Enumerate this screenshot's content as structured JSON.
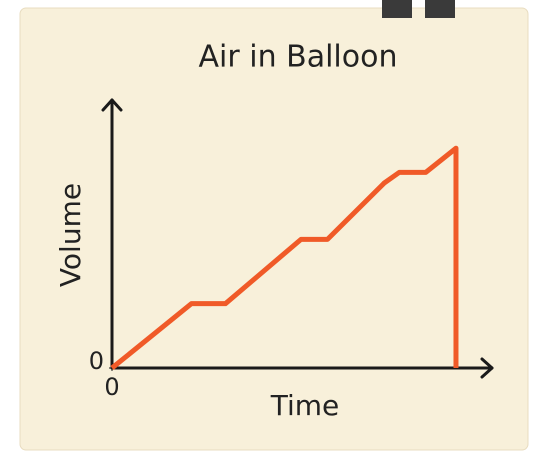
{
  "chart_data": {
    "type": "line",
    "title": "Air in Balloon",
    "xlabel": "Time",
    "ylabel": "Volume",
    "x": [
      0,
      2.1,
      3.0,
      5.0,
      5.7,
      7.2,
      7.6,
      8.3,
      9.1,
      9.1
    ],
    "series": [
      {
        "name": "Air",
        "color": "#f05a28",
        "values": [
          0,
          2.4,
          2.4,
          4.8,
          4.8,
          6.9,
          7.3,
          7.3,
          8.2,
          0
        ]
      }
    ],
    "xlim": [
      0,
      10
    ],
    "ylim": [
      0,
      10
    ],
    "xticks": [
      0
    ],
    "yticks": [
      0
    ]
  }
}
